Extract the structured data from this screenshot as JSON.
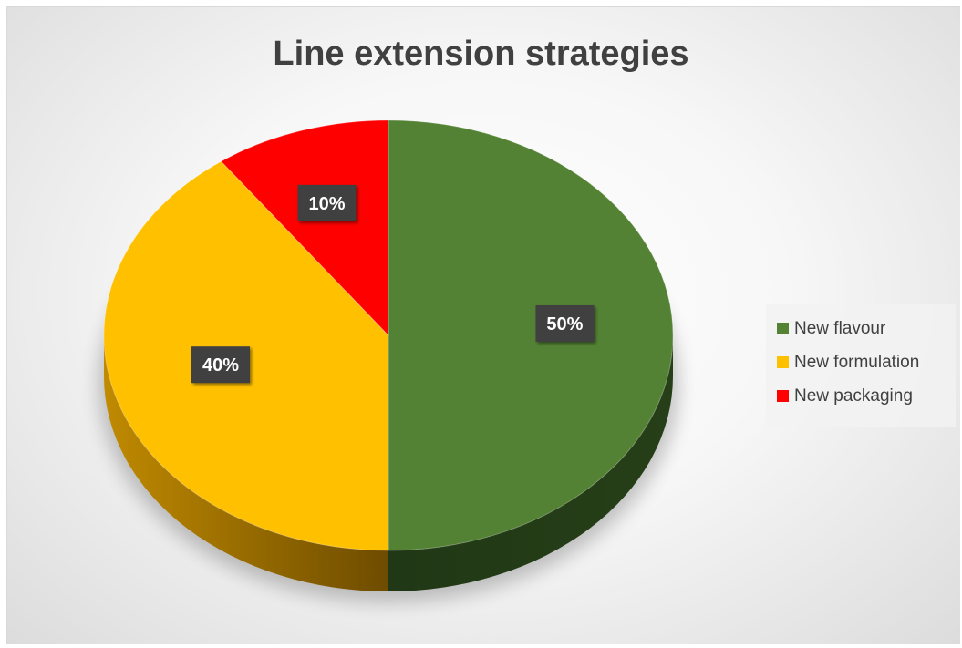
{
  "chart_data": {
    "type": "pie",
    "title": "Line extension strategies",
    "slices": [
      {
        "label": "New flavour",
        "value": 50,
        "display": "50%",
        "color": "#548235"
      },
      {
        "label": "New formulation",
        "value": 40,
        "display": "40%",
        "color": "#ffc000"
      },
      {
        "label": "New packaging",
        "value": 10,
        "display": "10%",
        "color": "#ff0000"
      }
    ],
    "legend_position": "right"
  }
}
